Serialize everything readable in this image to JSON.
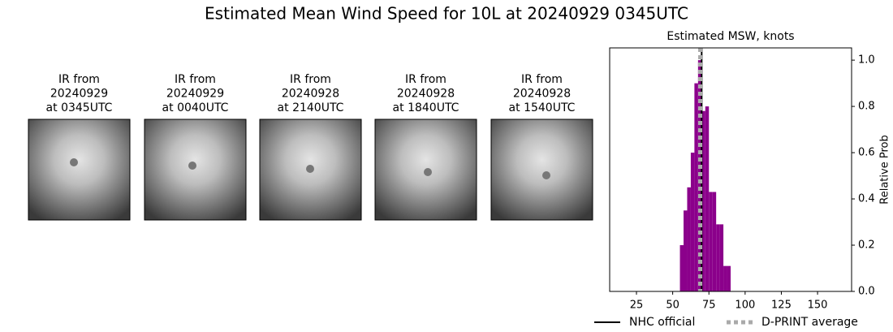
{
  "title": "Estimated Mean Wind Speed for 10L at 20240929 0345UTC",
  "panels": [
    {
      "lines": [
        "IR from",
        "20240929",
        "at 0345UTC"
      ]
    },
    {
      "lines": [
        "IR from",
        "20240929",
        "at 0040UTC"
      ]
    },
    {
      "lines": [
        "IR from",
        "20240928",
        "at 2140UTC"
      ]
    },
    {
      "lines": [
        "IR from",
        "20240928",
        "at 1840UTC"
      ]
    },
    {
      "lines": [
        "IR from",
        "20240928",
        "at 1540UTC"
      ]
    }
  ],
  "chart_data": {
    "type": "histogram",
    "title": "Estimated MSW, knots",
    "y_label": "Relative Prob",
    "bins": [
      55,
      57.5,
      60,
      62.5,
      65,
      67.5,
      70,
      72.5,
      75,
      77.5,
      80,
      82.5,
      85,
      87.5,
      90
    ],
    "values": [
      0.2,
      0.35,
      0.45,
      0.6,
      0.9,
      1.0,
      0.78,
      0.8,
      0.43,
      0.43,
      0.29,
      0.29,
      0.11,
      0.11
    ],
    "color": "#8b008b",
    "xlim": [
      6.5,
      173.5
    ],
    "xticks": [
      25,
      50,
      75,
      100,
      125,
      150
    ],
    "ylim": [
      0,
      1.053
    ],
    "yticks": [
      {
        "value": 0,
        "label": "0.0"
      },
      0.2,
      0.4,
      0.6,
      0.8,
      {
        "value": 1,
        "label": "1.0"
      }
    ],
    "reference_lines": [
      {
        "name": "NHC official",
        "value": 70,
        "color": "#000000",
        "dashed": false
      },
      {
        "name": "D-PRINT average",
        "value": 69,
        "color": "#aaaaaa",
        "dashed": true
      }
    ]
  }
}
